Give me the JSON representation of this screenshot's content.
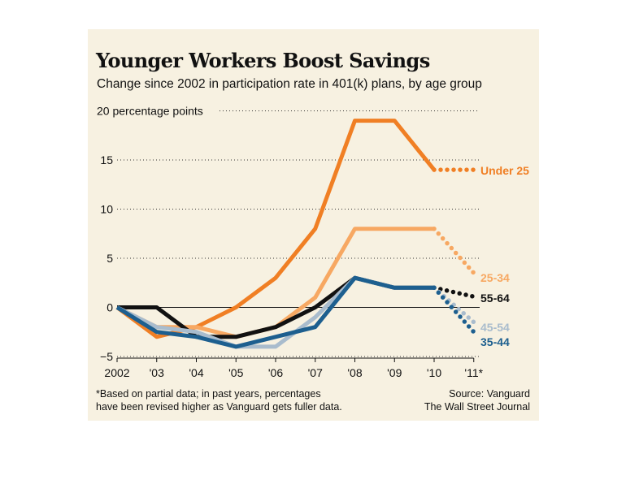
{
  "chart_data": {
    "type": "line",
    "title": "Younger Workers Boost Savings",
    "subtitle": "Change since 2002 in participation rate in 401(k) plans, by age group",
    "ylabel": "20 percentage points",
    "ylim": [
      -5,
      20
    ],
    "yticks": [
      -5,
      0,
      5,
      10,
      15
    ],
    "categories": [
      "2002",
      "'03",
      "'04",
      "'05",
      "'06",
      "'07",
      "'08",
      "'09",
      "'10",
      "'11*"
    ],
    "grid": "dotted horizontal",
    "partial_data_from_index": 8,
    "series": [
      {
        "name": "Under 25",
        "color": "#f07f24",
        "values": [
          0,
          -3,
          -2,
          0,
          3,
          8,
          19,
          19,
          14,
          14
        ]
      },
      {
        "name": "25-34",
        "color": "#f7a862",
        "values": [
          0,
          -2,
          -2,
          -3,
          -2,
          1,
          8,
          8,
          8,
          3.5
        ]
      },
      {
        "name": "55-64",
        "color": "#111111",
        "values": [
          0,
          0,
          -3,
          -3,
          -2,
          0,
          3,
          2,
          2,
          1.1
        ]
      },
      {
        "name": "45-54",
        "color": "#a9bccd",
        "values": [
          0,
          -2,
          -2.5,
          -4,
          -4,
          -1,
          3,
          2,
          2,
          -1.5
        ]
      },
      {
        "name": "35-44",
        "color": "#1d5f8f",
        "values": [
          0,
          -2.5,
          -3,
          -4,
          -3,
          -2,
          3,
          2,
          2,
          -2.5
        ]
      }
    ]
  },
  "footnote": {
    "line1": "*Based on partial data; in past years, percentages",
    "line2": "have been revised higher as Vanguard gets fuller data."
  },
  "source": {
    "line1": "Source: Vanguard",
    "line2": "The Wall Street Journal"
  }
}
